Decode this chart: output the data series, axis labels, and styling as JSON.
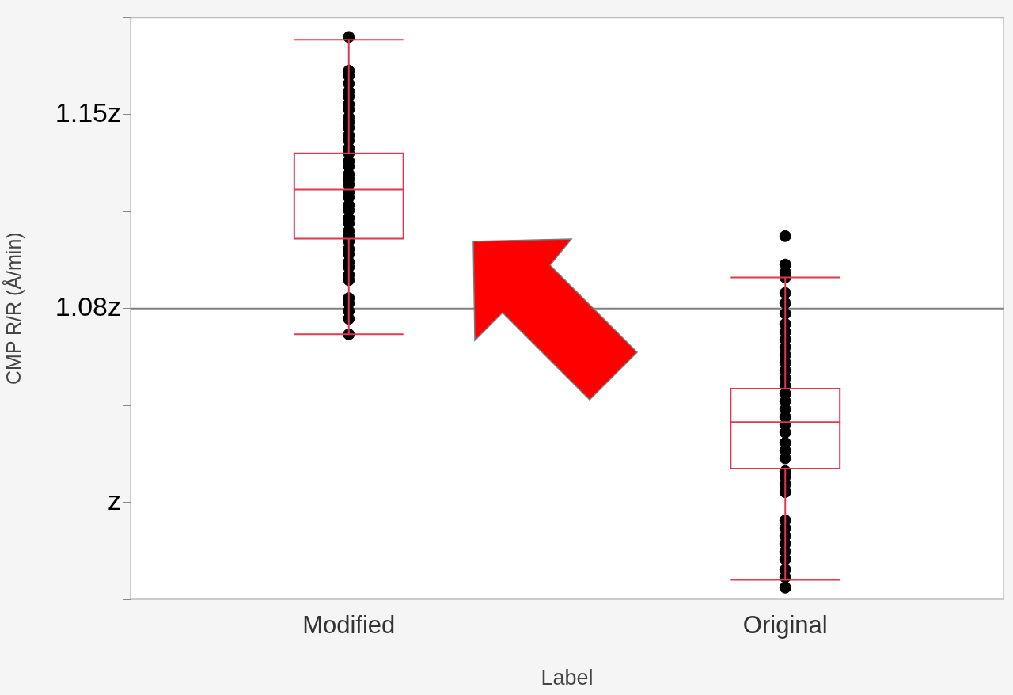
{
  "chart_data": {
    "type": "box",
    "xlabel": "Label",
    "ylabel": "CMP R/R (Å/min)",
    "categories": [
      "Modified",
      "Original"
    ],
    "ylim": [
      0.9625,
      1.1875
    ],
    "yticks": [
      {
        "value": 0.9625,
        "label": null
      },
      {
        "value": 1.0,
        "label": "z"
      },
      {
        "value": 1.0375,
        "label": null
      },
      {
        "value": 1.075,
        "label": "1.08z"
      },
      {
        "value": 1.1125,
        "label": null
      },
      {
        "value": 1.15,
        "label": "1.15z"
      },
      {
        "value": 1.1875,
        "label": null
      }
    ],
    "ref_lines": [
      {
        "axis": "y",
        "value": 1.075,
        "color": "#808080"
      }
    ],
    "marker": "circle",
    "series": [
      {
        "type": "box",
        "color": "#e0394f",
        "boxes": [
          {
            "low": 1.065,
            "q1": 1.102,
            "median": 1.121,
            "q3": 1.135,
            "high": 1.179
          },
          {
            "low": 0.97,
            "q1": 1.013,
            "median": 1.031,
            "q3": 1.044,
            "high": 1.087
          }
        ]
      },
      {
        "type": "scatter",
        "color": "#000000",
        "x": [
          "Modified",
          "Modified",
          "Modified",
          "Modified",
          "Modified",
          "Modified",
          "Modified",
          "Modified",
          "Modified",
          "Modified",
          "Modified",
          "Modified",
          "Modified",
          "Modified",
          "Modified",
          "Modified",
          "Modified",
          "Modified",
          "Modified",
          "Modified",
          "Modified",
          "Modified",
          "Modified",
          "Modified",
          "Modified",
          "Modified",
          "Modified",
          "Modified",
          "Modified",
          "Modified",
          "Modified",
          "Modified",
          "Modified",
          "Modified",
          "Modified",
          "Modified",
          "Modified",
          "Modified",
          "Modified",
          "Modified",
          "Original",
          "Original",
          "Original",
          "Original",
          "Original",
          "Original",
          "Original",
          "Original",
          "Original",
          "Original",
          "Original",
          "Original",
          "Original",
          "Original",
          "Original",
          "Original",
          "Original",
          "Original",
          "Original",
          "Original",
          "Original",
          "Original",
          "Original",
          "Original",
          "Original",
          "Original",
          "Original",
          "Original",
          "Original",
          "Original",
          "Original",
          "Original",
          "Original",
          "Original",
          "Original",
          "Original",
          "Original",
          "Original"
        ],
        "values": [
          1.18,
          1.167,
          1.165,
          1.162,
          1.159,
          1.157,
          1.154,
          1.152,
          1.149,
          1.147,
          1.145,
          1.142,
          1.14,
          1.137,
          1.135,
          1.132,
          1.13,
          1.127,
          1.125,
          1.123,
          1.12,
          1.118,
          1.115,
          1.113,
          1.11,
          1.108,
          1.105,
          1.103,
          1.101,
          1.098,
          1.096,
          1.093,
          1.091,
          1.088,
          1.086,
          1.079,
          1.077,
          1.074,
          1.071,
          1.065,
          1.103,
          1.092,
          1.089,
          1.087,
          1.081,
          1.077,
          1.073,
          1.069,
          1.066,
          1.063,
          1.06,
          1.057,
          1.054,
          1.051,
          1.048,
          1.045,
          1.042,
          1.039,
          1.036,
          1.033,
          1.03,
          1.027,
          1.023,
          1.02,
          1.017,
          1.012,
          1.01,
          1.007,
          1.004,
          0.993,
          0.99,
          0.987,
          0.984,
          0.981,
          0.978,
          0.974,
          0.971,
          0.967
        ]
      }
    ]
  }
}
